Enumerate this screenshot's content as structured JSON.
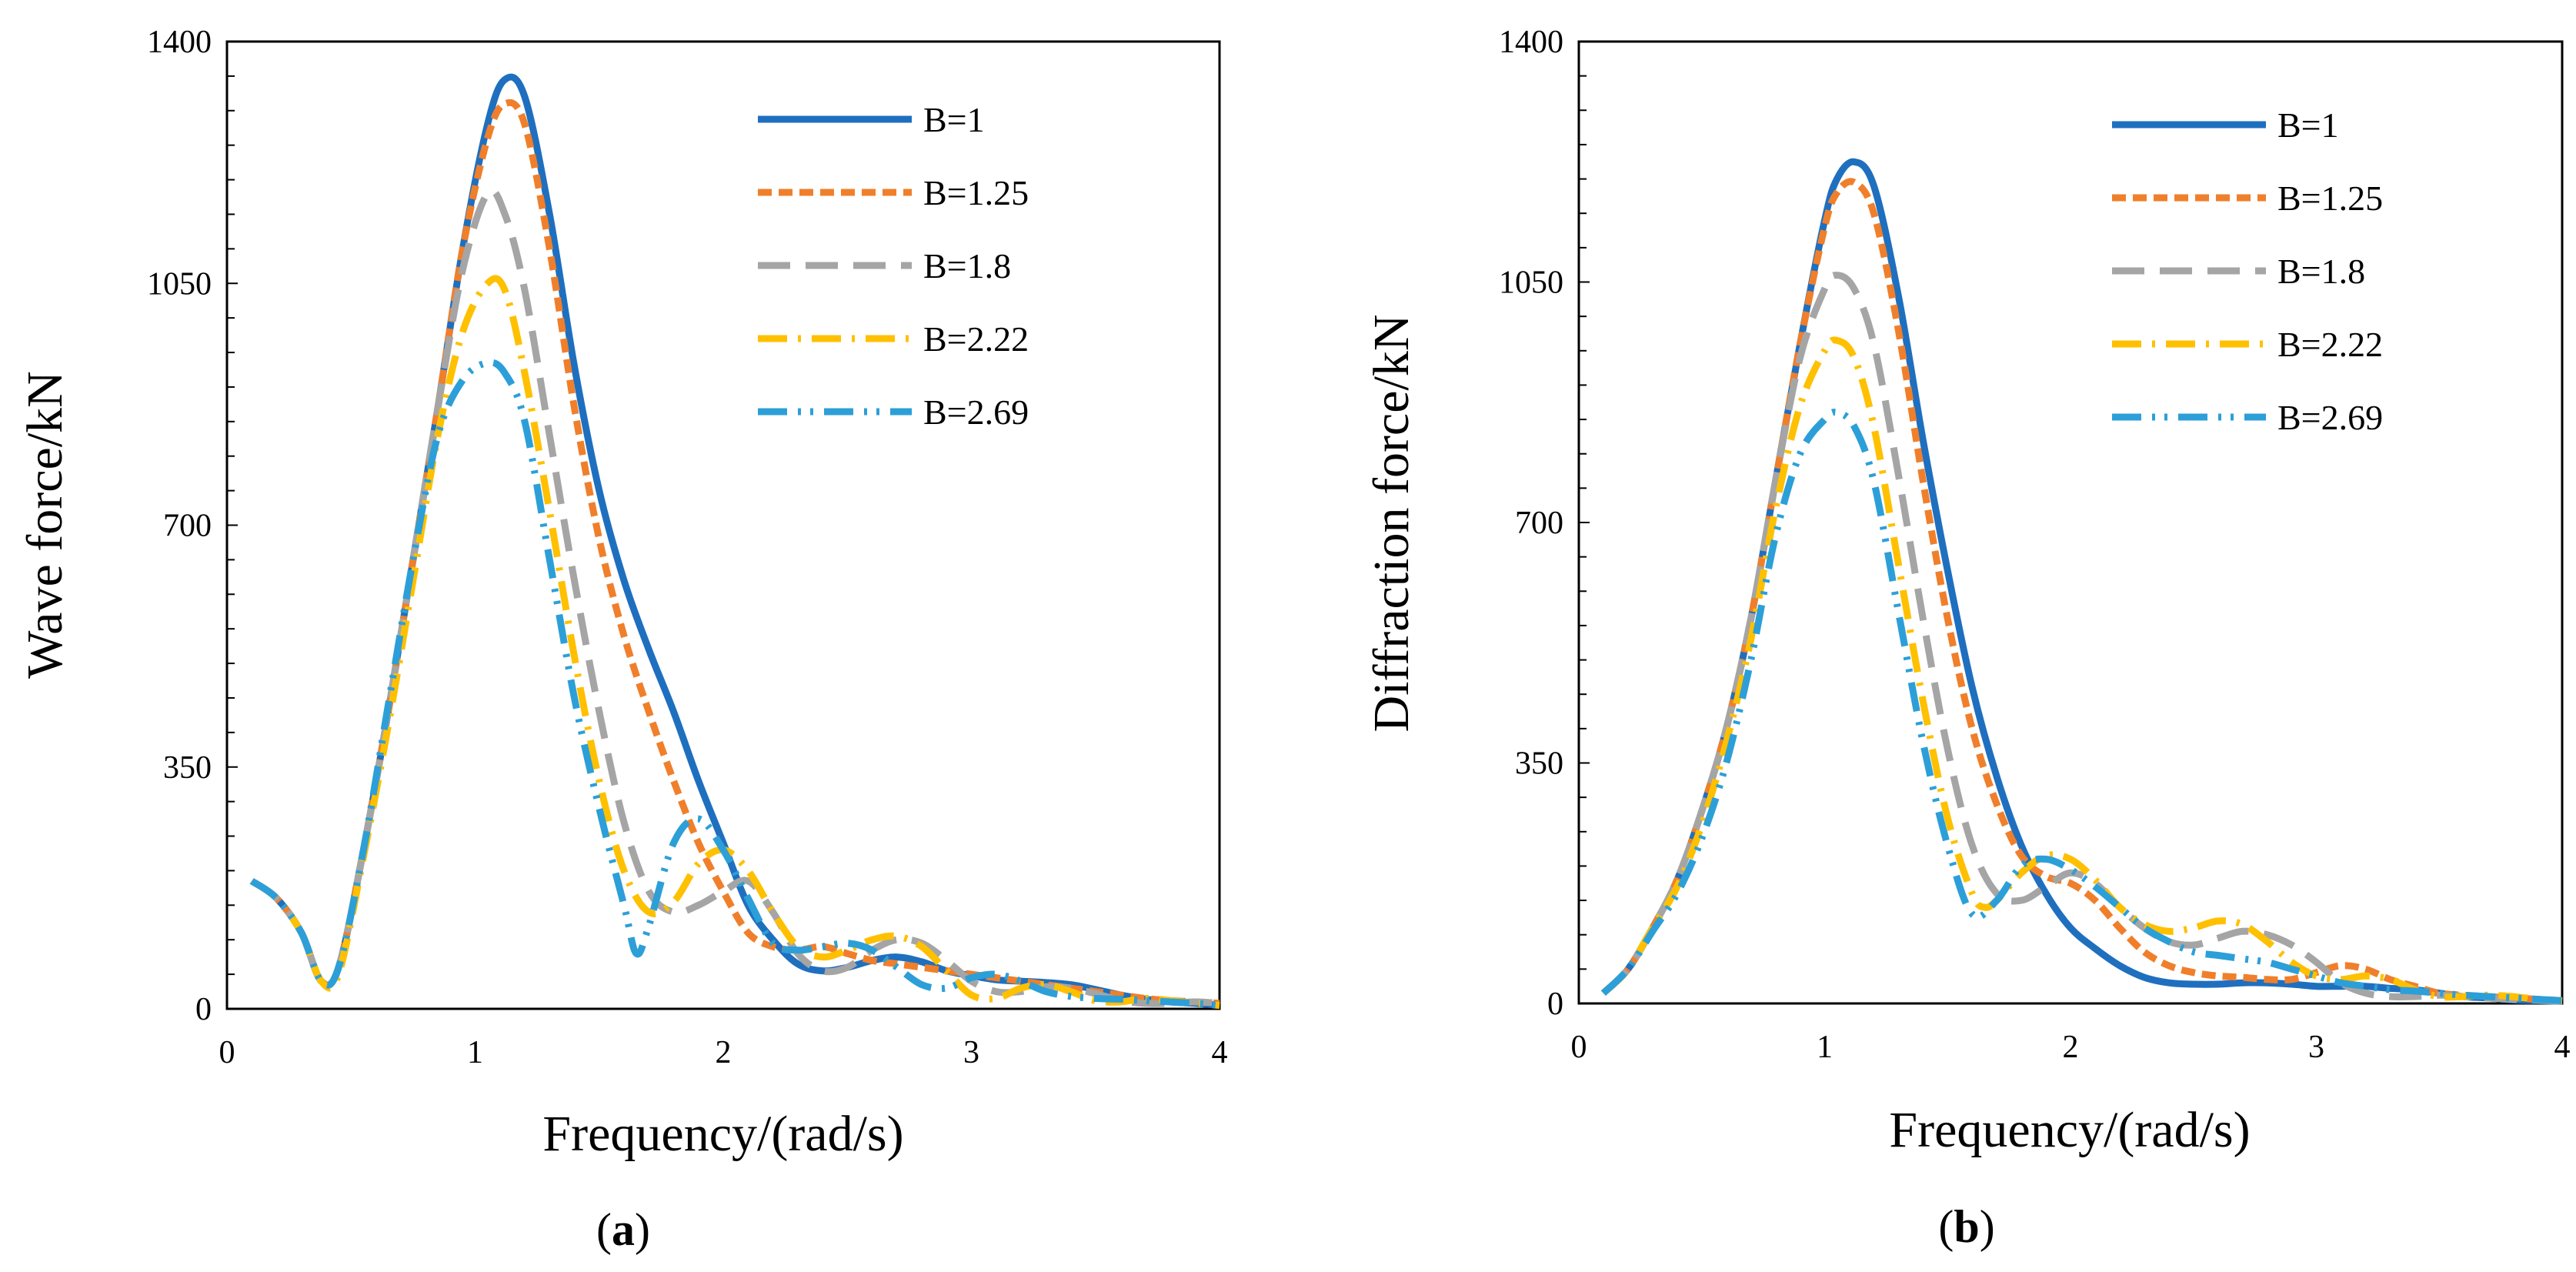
{
  "chart_data": [
    {
      "type": "line",
      "panel_label": "a",
      "xlabel": "Frequency/(rad/s)",
      "ylabel": "Wave force/kN",
      "xlim": [
        0,
        4
      ],
      "ylim": [
        0,
        1400
      ],
      "xticks": [
        0,
        1,
        2,
        3,
        4
      ],
      "yticks": [
        0,
        350,
        700,
        1050,
        1400
      ],
      "grid": false,
      "legend_position": "top-right",
      "series": [
        {
          "name": "B=1",
          "color": "#1F6FBF",
          "dash": "solid",
          "x": [
            0.1,
            0.2,
            0.3,
            0.38,
            0.45,
            0.55,
            0.65,
            0.75,
            0.85,
            0.95,
            1.05,
            1.12,
            1.2,
            1.3,
            1.4,
            1.5,
            1.6,
            1.7,
            1.8,
            1.9,
            2.0,
            2.1,
            2.2,
            2.3,
            2.4,
            2.5,
            2.6,
            2.7,
            2.8,
            2.9,
            3.0,
            3.1,
            3.2,
            3.3,
            3.4,
            3.5,
            3.6,
            3.7,
            3.8,
            3.9,
            4.0
          ],
          "y": [
            185,
            160,
            110,
            40,
            60,
            230,
            430,
            650,
            870,
            1100,
            1280,
            1345,
            1320,
            1150,
            930,
            750,
            620,
            520,
            430,
            330,
            240,
            150,
            100,
            65,
            55,
            60,
            70,
            75,
            68,
            55,
            48,
            42,
            40,
            38,
            35,
            28,
            20,
            14,
            10,
            8,
            5
          ]
        },
        {
          "name": "B=1.25",
          "color": "#F07F2B",
          "dash": "short-dash",
          "x": [
            0.1,
            0.2,
            0.3,
            0.38,
            0.45,
            0.55,
            0.65,
            0.75,
            0.85,
            0.95,
            1.05,
            1.12,
            1.2,
            1.3,
            1.4,
            1.5,
            1.6,
            1.7,
            1.8,
            1.9,
            2.0,
            2.1,
            2.2,
            2.3,
            2.4,
            2.5,
            2.6,
            2.7,
            2.8,
            2.9,
            3.0,
            3.1,
            3.2,
            3.3,
            3.4,
            3.5,
            3.6,
            3.7,
            3.8,
            3.9,
            4.0
          ],
          "y": [
            185,
            160,
            110,
            40,
            60,
            230,
            430,
            650,
            870,
            1100,
            1260,
            1310,
            1280,
            1100,
            870,
            680,
            540,
            430,
            330,
            240,
            170,
            110,
            90,
            85,
            90,
            80,
            70,
            65,
            60,
            55,
            50,
            45,
            40,
            35,
            30,
            25,
            20,
            15,
            12,
            10,
            8
          ]
        },
        {
          "name": "B=1.8",
          "color": "#A5A5A5",
          "dash": "long-dash",
          "x": [
            0.1,
            0.2,
            0.3,
            0.38,
            0.45,
            0.55,
            0.65,
            0.75,
            0.85,
            0.95,
            1.05,
            1.12,
            1.2,
            1.3,
            1.4,
            1.5,
            1.6,
            1.7,
            1.8,
            1.9,
            2.0,
            2.1,
            2.2,
            2.3,
            2.4,
            2.5,
            2.6,
            2.7,
            2.8,
            2.9,
            3.0,
            3.1,
            3.2,
            3.3,
            3.4,
            3.5,
            3.6,
            3.7,
            3.8,
            3.9,
            4.0
          ],
          "y": [
            185,
            160,
            110,
            40,
            60,
            230,
            430,
            650,
            870,
            1070,
            1180,
            1150,
            1040,
            830,
            620,
            430,
            270,
            170,
            140,
            150,
            170,
            185,
            140,
            80,
            55,
            60,
            85,
            100,
            95,
            70,
            40,
            25,
            25,
            32,
            30,
            22,
            12,
            8,
            8,
            10,
            8
          ]
        },
        {
          "name": "B=2.22",
          "color": "#FFC000",
          "dash": "dash-dot",
          "x": [
            0.1,
            0.2,
            0.3,
            0.38,
            0.45,
            0.55,
            0.65,
            0.75,
            0.85,
            0.95,
            1.05,
            1.12,
            1.2,
            1.3,
            1.4,
            1.5,
            1.6,
            1.7,
            1.8,
            1.9,
            2.0,
            2.1,
            2.2,
            2.3,
            2.4,
            2.5,
            2.6,
            2.7,
            2.8,
            2.9,
            3.0,
            3.1,
            3.2,
            3.3,
            3.4,
            3.5,
            3.6,
            3.7,
            3.8,
            3.9,
            4.0
          ],
          "y": [
            185,
            160,
            110,
            40,
            50,
            220,
            410,
            620,
            830,
            980,
            1050,
            1040,
            920,
            720,
            510,
            330,
            200,
            140,
            155,
            210,
            230,
            200,
            140,
            90,
            75,
            85,
            100,
            105,
            90,
            55,
            20,
            15,
            30,
            35,
            25,
            12,
            10,
            15,
            12,
            8,
            5
          ]
        },
        {
          "name": "B=2.69",
          "color": "#2C9FD8",
          "dash": "dash-dot-dot",
          "x": [
            0.1,
            0.2,
            0.3,
            0.38,
            0.45,
            0.55,
            0.65,
            0.75,
            0.85,
            0.95,
            1.05,
            1.12,
            1.2,
            1.3,
            1.4,
            1.5,
            1.6,
            1.65,
            1.7,
            1.8,
            1.9,
            2.0,
            2.1,
            2.2,
            2.3,
            2.4,
            2.5,
            2.6,
            2.7,
            2.8,
            2.9,
            3.0,
            3.1,
            3.2,
            3.3,
            3.4,
            3.5,
            3.6,
            3.7,
            3.8,
            3.9,
            4.0
          ],
          "y": [
            185,
            160,
            110,
            40,
            60,
            230,
            440,
            650,
            830,
            910,
            935,
            920,
            850,
            650,
            450,
            290,
            150,
            80,
            120,
            240,
            275,
            230,
            160,
            95,
            85,
            90,
            95,
            85,
            60,
            35,
            30,
            45,
            50,
            40,
            25,
            18,
            15,
            14,
            12,
            10,
            8,
            5
          ]
        }
      ]
    },
    {
      "type": "line",
      "panel_label": "b",
      "xlabel": "Frequency/(rad/s)",
      "ylabel": "Diffraction force/kN",
      "xlim": [
        0,
        4
      ],
      "ylim": [
        0,
        1400
      ],
      "xticks": [
        0,
        1,
        2,
        3,
        4
      ],
      "yticks": [
        0,
        350,
        700,
        1050,
        1400
      ],
      "grid": false,
      "legend_position": "top-right",
      "series": [
        {
          "name": "B=1",
          "color": "#1F6FBF",
          "dash": "solid",
          "x": [
            0.1,
            0.2,
            0.3,
            0.4,
            0.5,
            0.6,
            0.7,
            0.8,
            0.9,
            1.0,
            1.05,
            1.12,
            1.2,
            1.3,
            1.4,
            1.5,
            1.6,
            1.7,
            1.8,
            1.9,
            2.0,
            2.1,
            2.2,
            2.3,
            2.4,
            2.5,
            2.6,
            2.7,
            2.8,
            2.9,
            3.0,
            3.1,
            3.2,
            3.3,
            3.4,
            3.5,
            3.6,
            3.7,
            3.8,
            3.9,
            4.0
          ],
          "y": [
            15,
            50,
            110,
            180,
            280,
            400,
            560,
            760,
            960,
            1140,
            1200,
            1225,
            1190,
            1030,
            820,
            630,
            460,
            330,
            230,
            160,
            110,
            80,
            55,
            38,
            30,
            28,
            28,
            30,
            30,
            28,
            25,
            25,
            25,
            22,
            20,
            15,
            10,
            8,
            5,
            4,
            3
          ]
        },
        {
          "name": "B=1.25",
          "color": "#F07F2B",
          "dash": "short-dash",
          "x": [
            0.1,
            0.2,
            0.3,
            0.4,
            0.5,
            0.6,
            0.7,
            0.8,
            0.9,
            1.0,
            1.05,
            1.12,
            1.2,
            1.3,
            1.4,
            1.5,
            1.6,
            1.7,
            1.8,
            1.9,
            2.0,
            2.1,
            2.2,
            2.3,
            2.4,
            2.5,
            2.6,
            2.7,
            2.8,
            2.9,
            3.0,
            3.1,
            3.2,
            3.3,
            3.4,
            3.5,
            3.6,
            3.7,
            3.8,
            3.9,
            4.0
          ],
          "y": [
            15,
            50,
            110,
            180,
            280,
            400,
            560,
            760,
            960,
            1130,
            1180,
            1195,
            1150,
            980,
            760,
            560,
            400,
            290,
            215,
            185,
            175,
            150,
            110,
            75,
            55,
            45,
            40,
            38,
            35,
            35,
            45,
            55,
            50,
            35,
            25,
            15,
            12,
            10,
            8,
            6,
            4
          ]
        },
        {
          "name": "B=1.8",
          "color": "#A5A5A5",
          "dash": "long-dash",
          "x": [
            0.1,
            0.2,
            0.3,
            0.4,
            0.5,
            0.6,
            0.7,
            0.8,
            0.9,
            1.0,
            1.05,
            1.12,
            1.2,
            1.3,
            1.4,
            1.5,
            1.6,
            1.7,
            1.8,
            1.9,
            2.0,
            2.1,
            2.2,
            2.3,
            2.4,
            2.5,
            2.6,
            2.7,
            2.8,
            2.9,
            3.0,
            3.1,
            3.2,
            3.3,
            3.4,
            3.5,
            3.6,
            3.7,
            3.8,
            3.9,
            4.0
          ],
          "y": [
            15,
            50,
            110,
            180,
            280,
            400,
            560,
            760,
            940,
            1040,
            1060,
            1040,
            960,
            770,
            560,
            370,
            230,
            160,
            150,
            170,
            190,
            175,
            140,
            110,
            90,
            85,
            95,
            105,
            100,
            85,
            60,
            30,
            15,
            10,
            10,
            12,
            10,
            8,
            6,
            5,
            3
          ]
        },
        {
          "name": "B=2.22",
          "color": "#FFC000",
          "dash": "dash-dot",
          "x": [
            0.1,
            0.2,
            0.3,
            0.4,
            0.5,
            0.6,
            0.7,
            0.8,
            0.9,
            1.0,
            1.05,
            1.12,
            1.2,
            1.3,
            1.4,
            1.5,
            1.6,
            1.65,
            1.7,
            1.8,
            1.9,
            2.0,
            2.1,
            2.2,
            2.3,
            2.4,
            2.5,
            2.6,
            2.7,
            2.8,
            2.9,
            3.0,
            3.1,
            3.2,
            3.3,
            3.4,
            3.5,
            3.6,
            3.7,
            3.8,
            3.9,
            4.0
          ],
          "y": [
            15,
            50,
            110,
            170,
            260,
            380,
            530,
            720,
            870,
            950,
            965,
            940,
            840,
            640,
            440,
            270,
            160,
            140,
            150,
            190,
            215,
            210,
            180,
            140,
            115,
            105,
            110,
            120,
            115,
            90,
            60,
            40,
            35,
            40,
            35,
            20,
            10,
            10,
            12,
            10,
            6,
            4
          ]
        },
        {
          "name": "B=2.69",
          "color": "#2C9FD8",
          "dash": "dash-dot-dot",
          "x": [
            0.1,
            0.2,
            0.3,
            0.4,
            0.5,
            0.6,
            0.7,
            0.8,
            0.9,
            1.0,
            1.05,
            1.12,
            1.2,
            1.3,
            1.4,
            1.5,
            1.6,
            1.7,
            1.8,
            1.9,
            2.0,
            2.1,
            2.2,
            2.3,
            2.4,
            2.5,
            2.6,
            2.7,
            2.8,
            2.9,
            3.0,
            3.1,
            3.2,
            3.3,
            3.4,
            3.5,
            3.6,
            3.7,
            3.8,
            3.9,
            4.0
          ],
          "y": [
            15,
            50,
            105,
            160,
            240,
            350,
            500,
            680,
            800,
            850,
            860,
            840,
            760,
            570,
            380,
            230,
            130,
            150,
            200,
            210,
            195,
            170,
            140,
            110,
            90,
            75,
            70,
            65,
            60,
            50,
            40,
            30,
            25,
            20,
            18,
            15,
            12,
            10,
            8,
            6,
            4
          ]
        }
      ]
    }
  ]
}
